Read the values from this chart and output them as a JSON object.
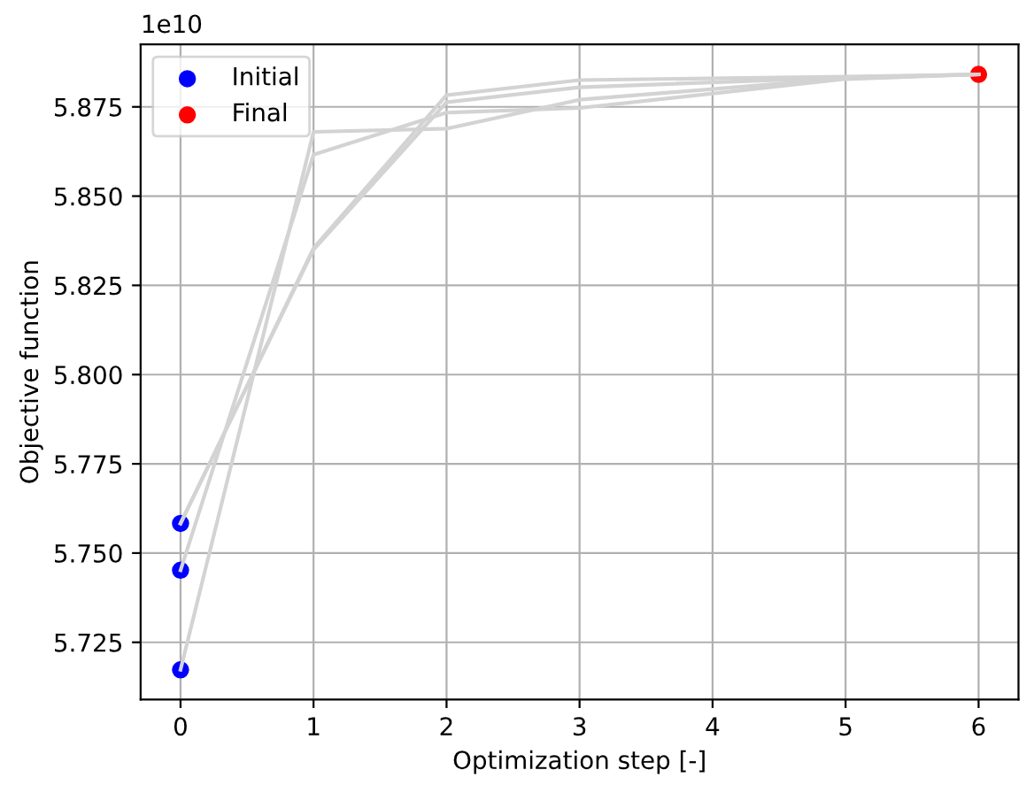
{
  "chart_data": {
    "type": "line",
    "xlabel": "Optimization step [-]",
    "ylabel": "Objective function",
    "annotations": [
      "1e10"
    ],
    "xlim": [
      -0.3,
      6.3
    ],
    "xticks": [
      0,
      1,
      2,
      3,
      4,
      5,
      6
    ],
    "ylim": [
      5.709,
      5.8925
    ],
    "yticks": [
      5.725,
      {
        "value": 5.75,
        "label": "5.750"
      },
      5.775,
      {
        "value": 5.8,
        "label": "5.800"
      },
      5.825,
      {
        "value": 5.85,
        "label": "5.850"
      },
      5.875
    ],
    "grid": true,
    "legend": "top left",
    "series": [
      {
        "name": "Initial",
        "type": "scatter",
        "marker": "circle",
        "color": "#0000ff",
        "x": [
          0,
          0,
          0
        ],
        "values": [
          5.7173,
          5.7452,
          5.7583
        ]
      },
      {
        "name": "Final",
        "type": "scatter",
        "marker": "circle",
        "color": "#ff0000",
        "x": [
          6
        ],
        "values": [
          5.8841
        ]
      },
      {
        "color": "#d3d3d3",
        "x": [
          0,
          1,
          2,
          3,
          5,
          6
        ],
        "values": [
          5.7173,
          5.868,
          5.8689,
          5.877,
          5.883,
          5.8841
        ]
      },
      {
        "color": "#d3d3d3",
        "x": [
          0,
          1,
          2,
          3,
          5,
          6
        ],
        "values": [
          5.7452,
          5.8616,
          5.8734,
          5.8747,
          5.8828,
          5.8841
        ]
      },
      {
        "color": "#d3d3d3",
        "x": [
          0,
          1,
          2,
          3,
          5,
          6
        ],
        "values": [
          5.7583,
          5.8354,
          5.8783,
          5.8825,
          5.8835,
          5.8841
        ]
      },
      {
        "color": "#d3d3d3",
        "x": [
          0,
          1,
          2,
          3,
          5,
          6
        ],
        "values": [
          5.7583,
          5.835,
          5.8763,
          5.8805,
          5.8832,
          5.8841
        ]
      }
    ]
  }
}
